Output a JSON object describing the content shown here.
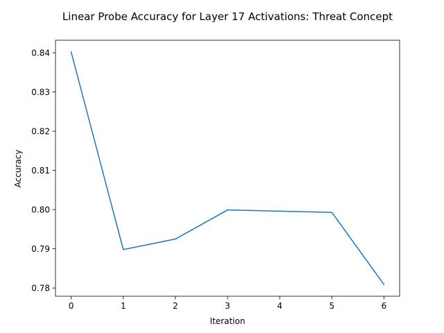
{
  "chart_data": {
    "type": "line",
    "title": "Linear Probe Accuracy for Layer 17 Activations: Threat Concept",
    "xlabel": "Iteration",
    "ylabel": "Accuracy",
    "x": [
      0,
      1,
      2,
      3,
      4,
      5,
      6
    ],
    "series": [
      {
        "values": [
          0.8402,
          0.7898,
          0.7925,
          0.7999,
          0.7996,
          0.7993,
          0.7809
        ],
        "color": "#1f77b4"
      }
    ],
    "xlim": [
      -0.3,
      6.3
    ],
    "ylim": [
      0.7779,
      0.8432
    ],
    "xticks": [
      0,
      1,
      2,
      3,
      4,
      5,
      6
    ],
    "xtick_labels": [
      "0",
      "1",
      "2",
      "3",
      "4",
      "5",
      "6"
    ],
    "yticks": [
      0.78,
      0.79,
      0.8,
      0.81,
      0.82,
      0.83,
      0.84
    ],
    "ytick_labels": [
      "0.78",
      "0.79",
      "0.80",
      "0.81",
      "0.82",
      "0.83",
      "0.84"
    ],
    "grid": false,
    "legend": "none"
  }
}
